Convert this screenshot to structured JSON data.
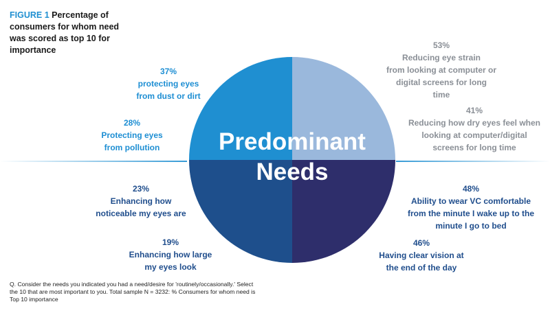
{
  "figure": {
    "number": "FIGURE 1",
    "title": "Percentage of consumers for whom need was scored as top 10 for importance"
  },
  "chart_data": {
    "type": "pie",
    "center_label": [
      "Predominant",
      "Needs"
    ],
    "quadrant_colors": [
      "#9ab8dc",
      "#2e2e6b",
      "#1e4f8c",
      "#1f8fd1"
    ],
    "needs": [
      {
        "value": 53,
        "pct": "53%",
        "label": "Reducing eye strain from looking at computer or digital screens for long time",
        "lines": [
          "Reducing eye strain",
          "from looking at computer or",
          "digital screens for long time"
        ]
      },
      {
        "value": 41,
        "pct": "41%",
        "label": "Reducing how dry eyes feel when looking at computer/digital screens for long time",
        "lines": [
          "Reducing how dry eyes feel when",
          "looking at computer/digital",
          "screens for long time"
        ]
      },
      {
        "value": 48,
        "pct": "48%",
        "label": "Ability to wear VC comfortable from the minute I wake up to the minute I go to bed",
        "lines": [
          "Ability to wear VC comfortable",
          "from the minute I wake up to the",
          "minute I go to bed"
        ]
      },
      {
        "value": 46,
        "pct": "46%",
        "label": "Having clear vision at the end of the day",
        "lines": [
          "Having clear vision at",
          "the end of the day"
        ]
      },
      {
        "value": 37,
        "pct": "37%",
        "label": "protecting eyes from dust or dirt",
        "lines": [
          "protecting eyes",
          "from dust or dirt"
        ]
      },
      {
        "value": 28,
        "pct": "28%",
        "label": "Protecting eyes from pollution",
        "lines": [
          "Protecting eyes",
          "from pollution"
        ]
      },
      {
        "value": 23,
        "pct": "23%",
        "label": "Enhancing how noticeable my eyes are",
        "lines": [
          "Enhancing how",
          "noticeable my eyes are"
        ]
      },
      {
        "value": 19,
        "pct": "19%",
        "label": "Enhancing how large my eyes look",
        "lines": [
          "Enhancing how large",
          "my eyes look"
        ]
      }
    ]
  },
  "footnote": "Q. Consider the needs you indicated you had a need/desire for 'routinely/occasionally.' Select the 10 that are most important to you. Total sample N = 3232: % Consumers for whom need is Top 10 importance"
}
